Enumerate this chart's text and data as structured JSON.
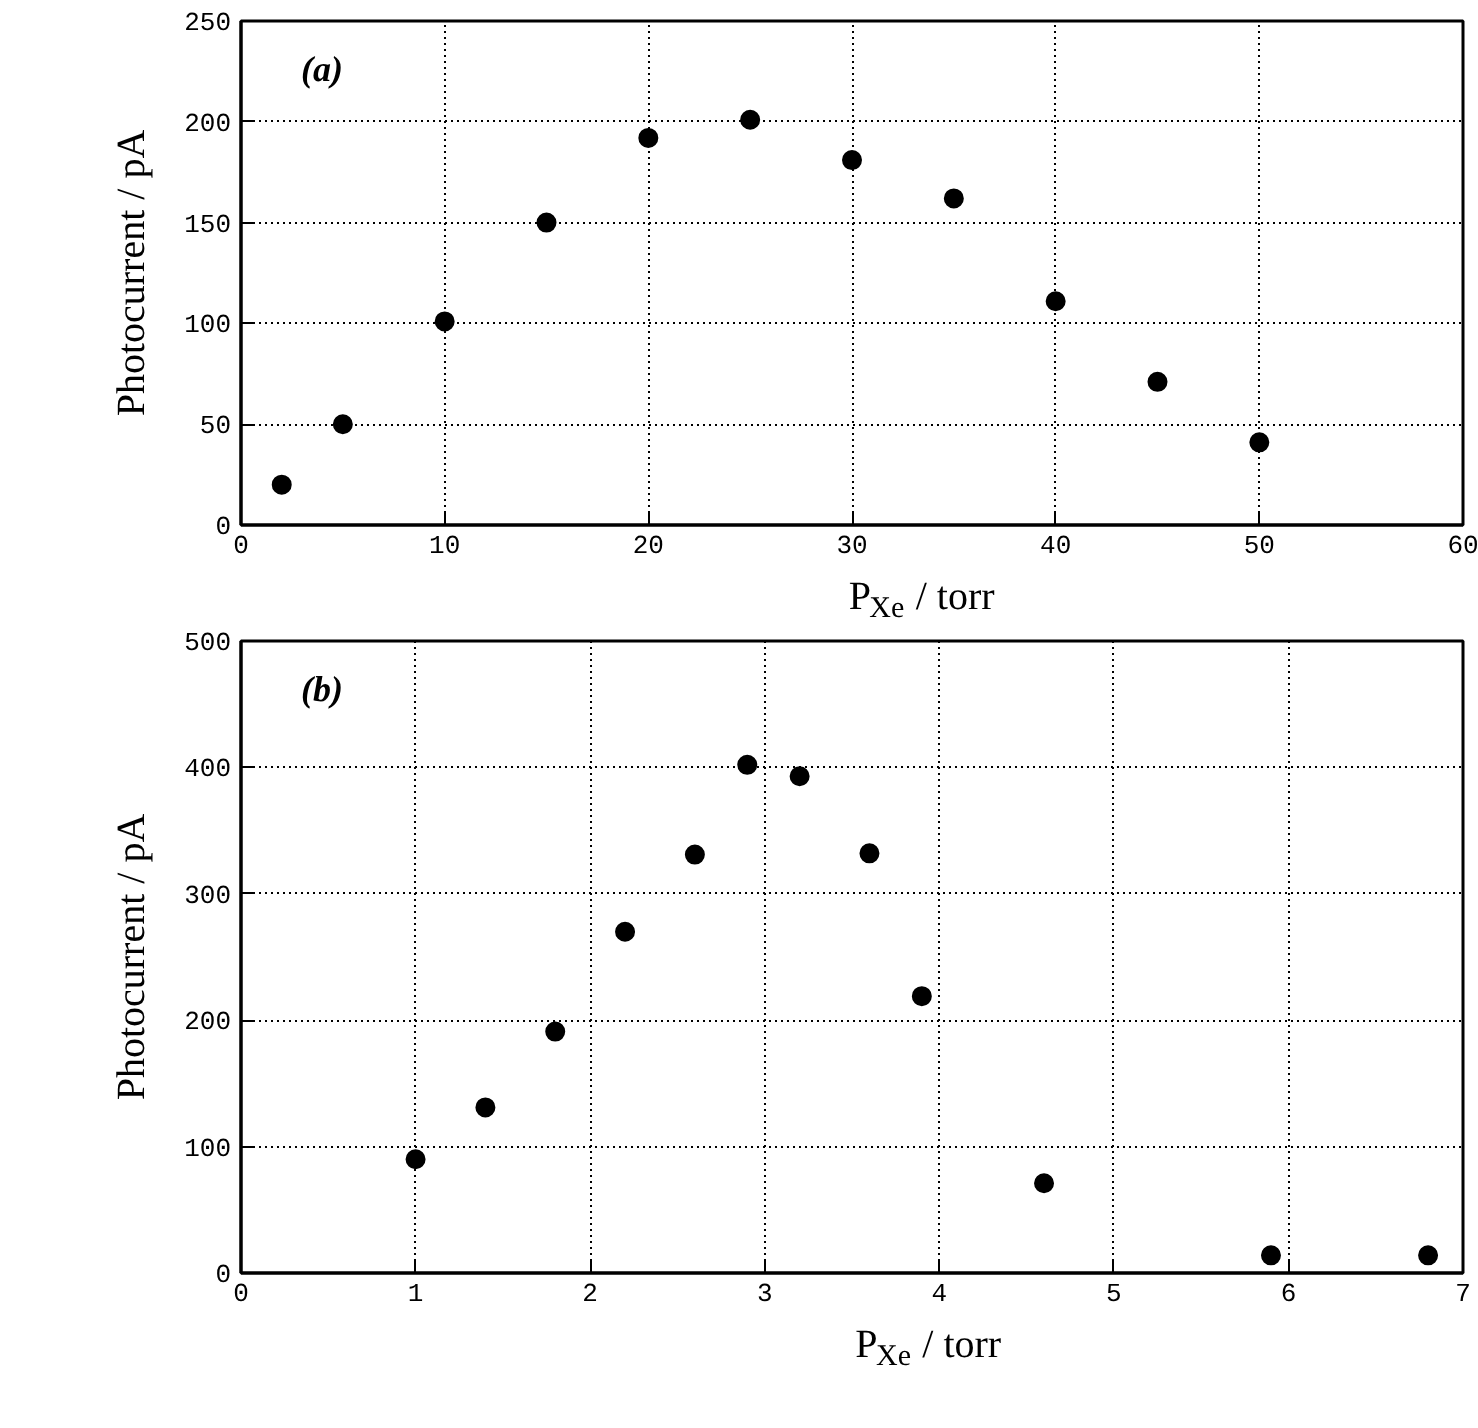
{
  "chart_data": [
    {
      "type": "scatter",
      "annotations": [
        "(a)"
      ],
      "xlabel": "P$_{Xe}$ / torr",
      "ylabel": "Photocurrent / pA",
      "x": [
        2,
        5,
        10,
        15,
        20,
        25,
        30,
        35,
        40,
        45,
        50
      ],
      "series": [
        {
          "color": "#000000",
          "values": [
            20,
            50,
            101,
            150,
            192,
            201,
            181,
            162,
            111,
            71,
            41
          ]
        }
      ],
      "xlim": [
        0,
        60
      ],
      "xticks": [
        0,
        10,
        20,
        30,
        40,
        50,
        60
      ],
      "ylim": [
        0,
        250
      ],
      "yticks": [
        0,
        50,
        100,
        150,
        200,
        250
      ],
      "grid": true,
      "marker": "circle"
    },
    {
      "type": "scatter",
      "annotations": [
        "(b)"
      ],
      "xlabel": "P$_{Xe}$ / torr",
      "ylabel": "Photocurrent / pA",
      "x": [
        1.0,
        1.4,
        1.8,
        2.2,
        2.6,
        2.9,
        3.2,
        3.6,
        3.9,
        4.6,
        5.9,
        6.8
      ],
      "series": [
        {
          "color": "#000000",
          "values": [
            90,
            131,
            191,
            270,
            331,
            402,
            393,
            332,
            219,
            71,
            14,
            14
          ]
        }
      ],
      "xlim": [
        0,
        7
      ],
      "xticks": [
        0,
        1,
        2,
        3,
        4,
        5,
        6,
        7
      ],
      "ylim": [
        0,
        500
      ],
      "yticks": [
        0,
        100,
        200,
        300,
        400,
        500
      ],
      "grid": true,
      "marker": "circle"
    }
  ]
}
